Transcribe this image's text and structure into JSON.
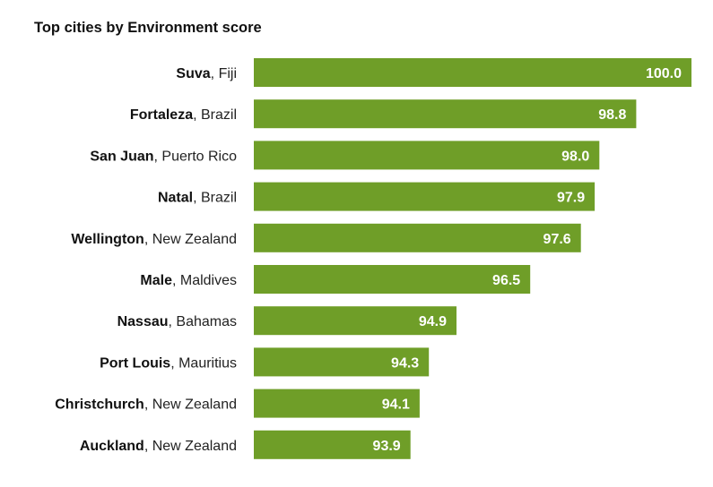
{
  "chart_data": {
    "type": "bar",
    "orientation": "horizontal",
    "title": "Top cities by Environment score",
    "categories": [
      {
        "city": "Suva",
        "country": "Fiji"
      },
      {
        "city": "Fortaleza",
        "country": "Brazil"
      },
      {
        "city": "San Juan",
        "country": "Puerto Rico"
      },
      {
        "city": "Natal",
        "country": "Brazil"
      },
      {
        "city": "Wellington",
        "country": "New Zealand"
      },
      {
        "city": "Male",
        "country": "Maldives"
      },
      {
        "city": "Nassau",
        "country": "Bahamas"
      },
      {
        "city": "Port Louis",
        "country": "Mauritius"
      },
      {
        "city": "Christchurch",
        "country": "New Zealand"
      },
      {
        "city": "Auckland",
        "country": "New Zealand"
      }
    ],
    "values": [
      100.0,
      98.8,
      98.0,
      97.9,
      97.6,
      96.5,
      94.9,
      94.3,
      94.1,
      93.9
    ],
    "value_labels": [
      "100.0",
      "98.8",
      "98.0",
      "97.9",
      "97.6",
      "96.5",
      "94.9",
      "94.3",
      "94.1",
      "93.9"
    ],
    "xlim": [
      90.5,
      100.0
    ],
    "bar_color": "#6f9e28",
    "xlabel": "",
    "ylabel": ""
  }
}
